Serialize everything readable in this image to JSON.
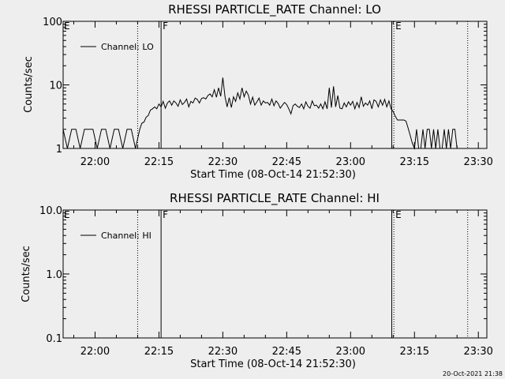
{
  "footer": {
    "timestamp": "20-Oct-2021 21:38"
  },
  "chart_data": [
    {
      "type": "line",
      "title": "RHESSI PARTICLE_RATE Channel: LO",
      "xlabel": "Start Time (08-Oct-14 21:52:30)",
      "ylabel": "Counts/sec",
      "yscale": "log",
      "ylim": [
        1,
        100
      ],
      "y_tick_labels": [
        "1",
        "10",
        "100"
      ],
      "x_start": "21:52:30",
      "x_end": "23:32:00",
      "x_tick_labels": [
        "22:00",
        "22:15",
        "22:30",
        "22:45",
        "23:00",
        "23:15",
        "23:30"
      ],
      "legend": {
        "position": "top-left",
        "entries": [
          "Channel: LO"
        ]
      },
      "markers": [
        {
          "time": "22:10:00",
          "style": "dotted",
          "label": ""
        },
        {
          "time": "22:15:30",
          "style": "solid",
          "label": "F"
        },
        {
          "time": "23:09:40",
          "style": "solid",
          "label": ""
        },
        {
          "time": "23:10:10",
          "style": "dotted",
          "label": "E"
        },
        {
          "time": "23:27:30",
          "style": "dotted",
          "label": ""
        }
      ],
      "corner_flag": "E",
      "series": [
        {
          "name": "Channel: LO",
          "points": [
            [
              "21:52:30",
              2
            ],
            [
              "21:53:30",
              1
            ],
            [
              "21:54:30",
              2
            ],
            [
              "21:55:30",
              2
            ],
            [
              "21:56:30",
              1
            ],
            [
              "21:57:30",
              2
            ],
            [
              "21:58:30",
              2
            ],
            [
              "21:59:30",
              2
            ],
            [
              "22:00:30",
              1
            ],
            [
              "22:01:30",
              2
            ],
            [
              "22:02:30",
              2
            ],
            [
              "22:03:30",
              1
            ],
            [
              "22:04:30",
              2
            ],
            [
              "22:05:30",
              2
            ],
            [
              "22:06:30",
              1
            ],
            [
              "22:07:30",
              2
            ],
            [
              "22:08:30",
              2
            ],
            [
              "22:09:30",
              1
            ],
            [
              "22:10:30",
              2
            ],
            [
              "22:11:00",
              2.5
            ],
            [
              "22:11:30",
              2.6
            ],
            [
              "22:12:00",
              3.1
            ],
            [
              "22:12:30",
              3.3
            ],
            [
              "22:13:00",
              4
            ],
            [
              "22:13:30",
              4.2
            ],
            [
              "22:14:00",
              4.5
            ],
            [
              "22:14:30",
              4.2
            ],
            [
              "22:15:00",
              5
            ],
            [
              "22:15:30",
              4.5
            ],
            [
              "22:16:00",
              5.5
            ],
            [
              "22:16:30",
              4.3
            ],
            [
              "22:17:00",
              5.2
            ],
            [
              "22:17:30",
              5.6
            ],
            [
              "22:18:00",
              4.8
            ],
            [
              "22:18:30",
              5.6
            ],
            [
              "22:19:00",
              5.2
            ],
            [
              "22:19:30",
              4.6
            ],
            [
              "22:20:00",
              5.8
            ],
            [
              "22:20:30",
              4.9
            ],
            [
              "22:21:00",
              5.3
            ],
            [
              "22:21:30",
              6
            ],
            [
              "22:22:00",
              4.5
            ],
            [
              "22:22:30",
              5.5
            ],
            [
              "22:23:00",
              5.2
            ],
            [
              "22:23:30",
              6.2
            ],
            [
              "22:24:00",
              5.9
            ],
            [
              "22:24:30",
              5.2
            ],
            [
              "22:25:00",
              6.1
            ],
            [
              "22:25:30",
              6.3
            ],
            [
              "22:26:00",
              6
            ],
            [
              "22:26:30",
              6.8
            ],
            [
              "22:27:00",
              7.2
            ],
            [
              "22:27:30",
              6.5
            ],
            [
              "22:28:00",
              8.4
            ],
            [
              "22:28:30",
              6.4
            ],
            [
              "22:29:00",
              9
            ],
            [
              "22:29:30",
              6.6
            ],
            [
              "22:30:00",
              13
            ],
            [
              "22:30:30",
              6.6
            ],
            [
              "22:31:00",
              4.5
            ],
            [
              "22:31:30",
              6.3
            ],
            [
              "22:32:00",
              4.4
            ],
            [
              "22:32:30",
              6.5
            ],
            [
              "22:33:00",
              5.5
            ],
            [
              "22:33:30",
              7.5
            ],
            [
              "22:34:00",
              6
            ],
            [
              "22:34:30",
              9
            ],
            [
              "22:35:00",
              6.5
            ],
            [
              "22:35:30",
              8
            ],
            [
              "22:36:00",
              6.9
            ],
            [
              "22:36:30",
              5
            ],
            [
              "22:37:00",
              6.4
            ],
            [
              "22:37:30",
              4.8
            ],
            [
              "22:38:00",
              5.4
            ],
            [
              "22:38:30",
              6.2
            ],
            [
              "22:39:00",
              4.8
            ],
            [
              "22:39:30",
              5.6
            ],
            [
              "22:40:00",
              5.2
            ],
            [
              "22:40:30",
              5.3
            ],
            [
              "22:41:00",
              4.8
            ],
            [
              "22:41:30",
              6
            ],
            [
              "22:42:00",
              4.7
            ],
            [
              "22:42:30",
              5.6
            ],
            [
              "22:43:00",
              5.1
            ],
            [
              "22:43:30",
              4.3
            ],
            [
              "22:44:00",
              4.8
            ],
            [
              "22:44:30",
              5.3
            ],
            [
              "22:45:00",
              4.9
            ],
            [
              "22:45:30",
              4.2
            ],
            [
              "22:46:00",
              3.5
            ],
            [
              "22:46:30",
              4.7
            ],
            [
              "22:47:00",
              5
            ],
            [
              "22:47:30",
              4.6
            ],
            [
              "22:48:00",
              4.4
            ],
            [
              "22:48:30",
              5
            ],
            [
              "22:49:00",
              4.2
            ],
            [
              "22:49:30",
              5.4
            ],
            [
              "22:50:00",
              4.6
            ],
            [
              "22:50:30",
              4.3
            ],
            [
              "22:51:00",
              5.6
            ],
            [
              "22:51:30",
              4.7
            ],
            [
              "22:52:00",
              4.8
            ],
            [
              "22:52:30",
              4.3
            ],
            [
              "22:53:00",
              5
            ],
            [
              "22:53:30",
              4.2
            ],
            [
              "22:54:00",
              5.4
            ],
            [
              "22:54:30",
              4.2
            ],
            [
              "22:55:00",
              9
            ],
            [
              "22:55:30",
              4.4
            ],
            [
              "22:56:00",
              9.5
            ],
            [
              "22:56:30",
              4.5
            ],
            [
              "22:57:00",
              6.8
            ],
            [
              "22:57:30",
              4.3
            ],
            [
              "22:58:00",
              4.2
            ],
            [
              "22:58:30",
              5.2
            ],
            [
              "22:59:00",
              4.5
            ],
            [
              "22:59:30",
              5.4
            ],
            [
              "23:00:00",
              4.8
            ],
            [
              "23:00:30",
              5.5
            ],
            [
              "23:01:00",
              4.2
            ],
            [
              "23:01:30",
              5.3
            ],
            [
              "23:02:00",
              4.4
            ],
            [
              "23:02:30",
              6.5
            ],
            [
              "23:03:00",
              4.6
            ],
            [
              "23:03:30",
              5.2
            ],
            [
              "23:04:00",
              4.8
            ],
            [
              "23:04:30",
              5.6
            ],
            [
              "23:05:00",
              4.2
            ],
            [
              "23:05:30",
              5.8
            ],
            [
              "23:06:00",
              5.5
            ],
            [
              "23:06:30",
              4.5
            ],
            [
              "23:07:00",
              5.8
            ],
            [
              "23:07:30",
              4.8
            ],
            [
              "23:08:00",
              5.9
            ],
            [
              "23:08:30",
              4.5
            ],
            [
              "23:09:00",
              5.6
            ],
            [
              "23:09:30",
              4.2
            ],
            [
              "23:10:00",
              3.8
            ],
            [
              "23:10:30",
              3.2
            ],
            [
              "23:11:00",
              2.8
            ],
            [
              "23:11:30",
              2.8
            ],
            [
              "23:12:00",
              2.8
            ],
            [
              "23:12:30",
              2.8
            ],
            [
              "23:13:00",
              2.7
            ],
            [
              "23:13:30",
              2.1
            ],
            [
              "23:14:00",
              1.6
            ],
            [
              "23:14:30",
              1.2
            ],
            [
              "23:15:00",
              1
            ],
            [
              "23:15:30",
              2
            ],
            [
              "23:16:00",
              1
            ],
            [
              "23:16:30",
              1
            ],
            [
              "23:17:00",
              2
            ],
            [
              "23:17:30",
              1
            ],
            [
              "23:18:00",
              2
            ],
            [
              "23:18:30",
              2
            ],
            [
              "23:19:00",
              1
            ],
            [
              "23:19:30",
              2
            ],
            [
              "23:20:00",
              1
            ],
            [
              "23:20:30",
              2
            ],
            [
              "23:21:00",
              1
            ],
            [
              "23:21:30",
              1
            ],
            [
              "23:22:00",
              2
            ],
            [
              "23:22:30",
              1
            ],
            [
              "23:23:00",
              2
            ],
            [
              "23:23:30",
              1
            ],
            [
              "23:24:00",
              2
            ],
            [
              "23:24:30",
              2
            ],
            [
              "23:25:00",
              1
            ]
          ]
        }
      ]
    },
    {
      "type": "line",
      "title": "RHESSI PARTICLE_RATE Channel: HI",
      "xlabel": "Start Time (08-Oct-14 21:52:30)",
      "ylabel": "Counts/sec",
      "yscale": "log",
      "ylim": [
        0.1,
        10
      ],
      "y_tick_labels": [
        "0.1",
        "1.0",
        "10.0"
      ],
      "x_start": "21:52:30",
      "x_end": "23:32:00",
      "x_tick_labels": [
        "22:00",
        "22:15",
        "22:30",
        "22:45",
        "23:00",
        "23:15",
        "23:30"
      ],
      "legend": {
        "position": "top-left",
        "entries": [
          "Channel: HI"
        ]
      },
      "markers": [
        {
          "time": "22:10:00",
          "style": "dotted",
          "label": ""
        },
        {
          "time": "22:15:30",
          "style": "solid",
          "label": "F"
        },
        {
          "time": "23:09:40",
          "style": "solid",
          "label": ""
        },
        {
          "time": "23:10:10",
          "style": "dotted",
          "label": "E"
        },
        {
          "time": "23:27:30",
          "style": "dotted",
          "label": ""
        }
      ],
      "corner_flag": "E",
      "series": [
        {
          "name": "Channel: HI",
          "points": []
        }
      ]
    }
  ]
}
